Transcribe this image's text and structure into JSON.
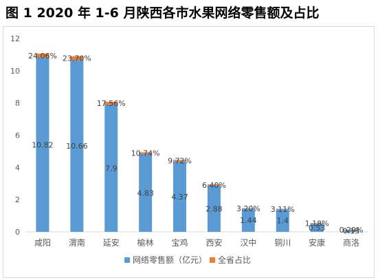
{
  "title": "图 1   2020 年 1-6 月陕西各市水果网络零售额及占比",
  "chart_data": {
    "type": "bar",
    "title": "图 1   2020 年 1-6 月陕西各市水果网络零售额及占比",
    "categories": [
      "咸阳",
      "渭南",
      "延安",
      "榆林",
      "宝鸡",
      "西安",
      "汉中",
      "铜川",
      "安康",
      "商洛"
    ],
    "series": [
      {
        "name": "网络零售额（亿元）",
        "color": "#5b9bd5",
        "values": [
          10.82,
          10.66,
          7.9,
          4.83,
          4.37,
          2.88,
          1.44,
          1.4,
          0.53,
          0.13
        ],
        "labels": [
          "10.82",
          "10.66",
          "7.9",
          "4.83",
          "4.37",
          "2.88",
          "1.44",
          "1.4",
          "0.53",
          "0.13"
        ]
      },
      {
        "name": "全省占比",
        "color": "#ed7d31",
        "values": [
          0.2406,
          0.237,
          0.1756,
          0.1074,
          0.0972,
          0.064,
          0.032,
          0.0311,
          0.0118,
          0.0029
        ],
        "labels": [
          "24.06%",
          "23.70%",
          "17.56%",
          "10.74%",
          "9.72%",
          "6.40%",
          "3.20%",
          "3.11%",
          "1.18%",
          "0.29%"
        ]
      }
    ],
    "stacked": true,
    "ylim": [
      0,
      12
    ],
    "yticks": [
      "0",
      "2",
      "4",
      "6",
      "8",
      "10",
      "12"
    ],
    "grid": false,
    "legend_position": "bottom"
  }
}
